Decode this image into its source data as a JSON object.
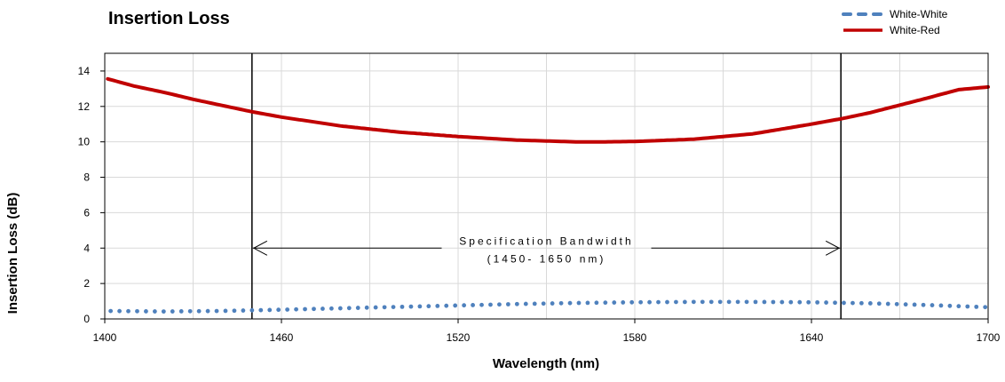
{
  "chart_data": {
    "type": "line",
    "title": "Insertion Loss",
    "xlabel": "Wavelength (nm)",
    "ylabel": "Insertion Loss (dB)",
    "xlim": [
      1400,
      1700
    ],
    "ylim": [
      0,
      15
    ],
    "xticks": [
      1400,
      1460,
      1520,
      1580,
      1640,
      1700
    ],
    "yticks": [
      0,
      2,
      4,
      6,
      8,
      10,
      12,
      14
    ],
    "grid": true,
    "legend_position": "top-right",
    "series": [
      {
        "name": "White-White",
        "style": "dotted",
        "color": "#4f81bd",
        "x": [
          1400,
          1420,
          1440,
          1460,
          1480,
          1500,
          1520,
          1540,
          1560,
          1580,
          1600,
          1620,
          1640,
          1660,
          1680,
          1700
        ],
        "y": [
          0.45,
          0.42,
          0.45,
          0.52,
          0.6,
          0.68,
          0.76,
          0.84,
          0.9,
          0.94,
          0.96,
          0.96,
          0.94,
          0.88,
          0.78,
          0.66
        ]
      },
      {
        "name": "White-Red",
        "style": "solid",
        "color": "#c00000",
        "x": [
          1400,
          1410,
          1420,
          1430,
          1440,
          1450,
          1460,
          1480,
          1500,
          1520,
          1540,
          1560,
          1570,
          1580,
          1600,
          1620,
          1640,
          1650,
          1660,
          1680,
          1690,
          1700
        ],
        "y": [
          13.6,
          13.15,
          12.8,
          12.4,
          12.05,
          11.7,
          11.4,
          10.9,
          10.55,
          10.3,
          10.1,
          10.0,
          10.0,
          10.02,
          10.15,
          10.45,
          11.0,
          11.3,
          11.65,
          12.5,
          12.95,
          13.1
        ]
      }
    ],
    "annotations": {
      "bandwidth": {
        "line1": "Specification  Bandwidth",
        "line2": "(1450-  1650 nm)",
        "x_start": 1450,
        "x_end": 1650,
        "arrow_y": 4.0
      }
    }
  }
}
